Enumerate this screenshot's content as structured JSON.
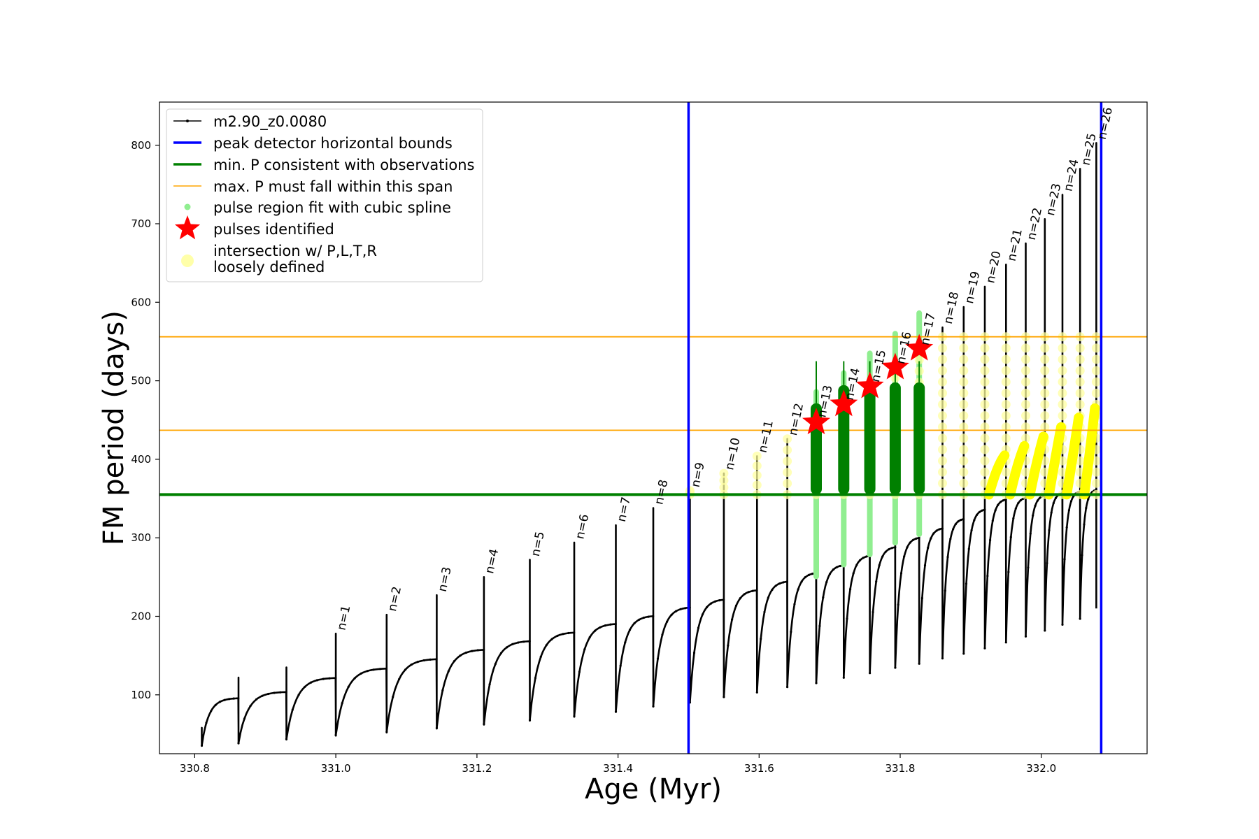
{
  "chart_data": {
    "type": "line",
    "title": "",
    "xlabel": "Age (Myr)",
    "ylabel": "FM period (days)",
    "xlim": [
      330.75,
      332.15
    ],
    "ylim": [
      25,
      855
    ],
    "xticks": [
      "330.8",
      "331.0",
      "331.2",
      "331.4",
      "331.6",
      "331.8",
      "332.0"
    ],
    "xtick_values": [
      330.8,
      331.0,
      331.2,
      331.4,
      331.6,
      331.8,
      332.0
    ],
    "yticks": [
      "100",
      "200",
      "300",
      "400",
      "500",
      "600",
      "700",
      "800"
    ],
    "ytick_values": [
      100,
      200,
      300,
      400,
      500,
      600,
      700,
      800
    ],
    "grid": false,
    "legend_position": "top-left",
    "legend": [
      {
        "label": "m2.90_z0.0080",
        "marker": "line-dot",
        "color": "#000000"
      },
      {
        "label": "peak detector horizontal bounds",
        "marker": "line",
        "color": "#0000ff"
      },
      {
        "label": "min. P consistent with observations",
        "marker": "line",
        "color": "#008000"
      },
      {
        "label": "max. P must fall within this span",
        "marker": "line",
        "color": "#ffa500"
      },
      {
        "label": "pulse region fit with cubic spline",
        "marker": "dot",
        "color": "#90ee90"
      },
      {
        "label": "pulses identified",
        "marker": "star",
        "color": "#ff0000"
      },
      {
        "label_lines": [
          "intersection w/ P,L,T,R",
          "loosely defined"
        ],
        "marker": "circle",
        "color": "#ffffa0"
      }
    ],
    "colors": {
      "track": "#000000",
      "bounds": "#0000ff",
      "min_p": "#008000",
      "max_p": "#ffa500",
      "spline": "#90ee90",
      "pulse_star": "#ff0000",
      "loose": "#ffff00",
      "fit_region": "#008000"
    },
    "vertical_bounds_x": [
      331.5,
      332.085
    ],
    "min_period_y": 355,
    "max_period_span_y": [
      437,
      556
    ],
    "series": [
      {
        "name": "m2.90_z0.0080",
        "pulses": [
          {
            "label": "",
            "x": 330.81,
            "base": 35,
            "top": 58,
            "end": 96
          },
          {
            "label": "",
            "x": 330.862,
            "base": 38,
            "top": 122,
            "end": 104
          },
          {
            "label": "",
            "x": 330.93,
            "base": 43,
            "top": 135,
            "end": 122
          },
          {
            "label": "n=1",
            "x": 331.0,
            "base": 48,
            "top": 178,
            "end": 134
          },
          {
            "label": "n=2",
            "x": 331.072,
            "base": 52,
            "top": 202,
            "end": 146
          },
          {
            "label": "n=3",
            "x": 331.143,
            "base": 57,
            "top": 227,
            "end": 158
          },
          {
            "label": "n=4",
            "x": 331.21,
            "base": 62,
            "top": 250,
            "end": 169
          },
          {
            "label": "n=5",
            "x": 331.275,
            "base": 67,
            "top": 272,
            "end": 180
          },
          {
            "label": "n=6",
            "x": 331.338,
            "base": 72,
            "top": 294,
            "end": 191
          },
          {
            "label": "n=7",
            "x": 331.397,
            "base": 78,
            "top": 316,
            "end": 201
          },
          {
            "label": "n=8",
            "x": 331.45,
            "base": 85,
            "top": 338,
            "end": 212
          },
          {
            "label": "n=9",
            "x": 331.502,
            "base": 90,
            "top": 360,
            "end": 222
          },
          {
            "label": "n=10",
            "x": 331.55,
            "base": 97,
            "top": 382,
            "end": 234
          },
          {
            "label": "n=11",
            "x": 331.597,
            "base": 103,
            "top": 404,
            "end": 245
          },
          {
            "label": "n=12",
            "x": 331.64,
            "base": 110,
            "top": 426,
            "end": 256
          },
          {
            "label": "n=13",
            "x": 331.681,
            "base": 115,
            "top": 449,
            "end": 266
          },
          {
            "label": "n=14",
            "x": 331.72,
            "base": 122,
            "top": 471,
            "end": 278
          },
          {
            "label": "n=15",
            "x": 331.757,
            "base": 128,
            "top": 494,
            "end": 289
          },
          {
            "label": "n=16",
            "x": 331.793,
            "base": 135,
            "top": 517,
            "end": 301
          },
          {
            "label": "n=17",
            "x": 331.827,
            "base": 140,
            "top": 541,
            "end": 313
          },
          {
            "label": "n=18",
            "x": 331.86,
            "base": 147,
            "top": 568,
            "end": 325
          },
          {
            "label": "n=19",
            "x": 331.89,
            "base": 153,
            "top": 594,
            "end": 337
          },
          {
            "label": "n=20",
            "x": 331.92,
            "base": 160,
            "top": 620,
            "end": 350
          },
          {
            "label": "n=21",
            "x": 331.95,
            "base": 168,
            "top": 648,
            "end": 352
          },
          {
            "label": "n=22",
            "x": 331.978,
            "base": 176,
            "top": 675,
            "end": 355
          },
          {
            "label": "n=23",
            "x": 332.005,
            "base": 184,
            "top": 706,
            "end": 358
          },
          {
            "label": "n=24",
            "x": 332.03,
            "base": 192,
            "top": 737,
            "end": 360
          },
          {
            "label": "n=25",
            "x": 332.055,
            "base": 200,
            "top": 770,
            "end": 362
          },
          {
            "label": "n=26",
            "x": 332.078,
            "base": 210,
            "top": 803,
            "end": 365
          }
        ]
      }
    ],
    "identified_pulses": [
      {
        "label": "n=13",
        "x": 331.681,
        "y": 447
      },
      {
        "label": "n=14",
        "x": 331.72,
        "y": 470
      },
      {
        "label": "n=15",
        "x": 331.757,
        "y": 493
      },
      {
        "label": "n=16",
        "x": 331.793,
        "y": 517
      },
      {
        "label": "n=17",
        "x": 331.827,
        "y": 541
      }
    ]
  }
}
